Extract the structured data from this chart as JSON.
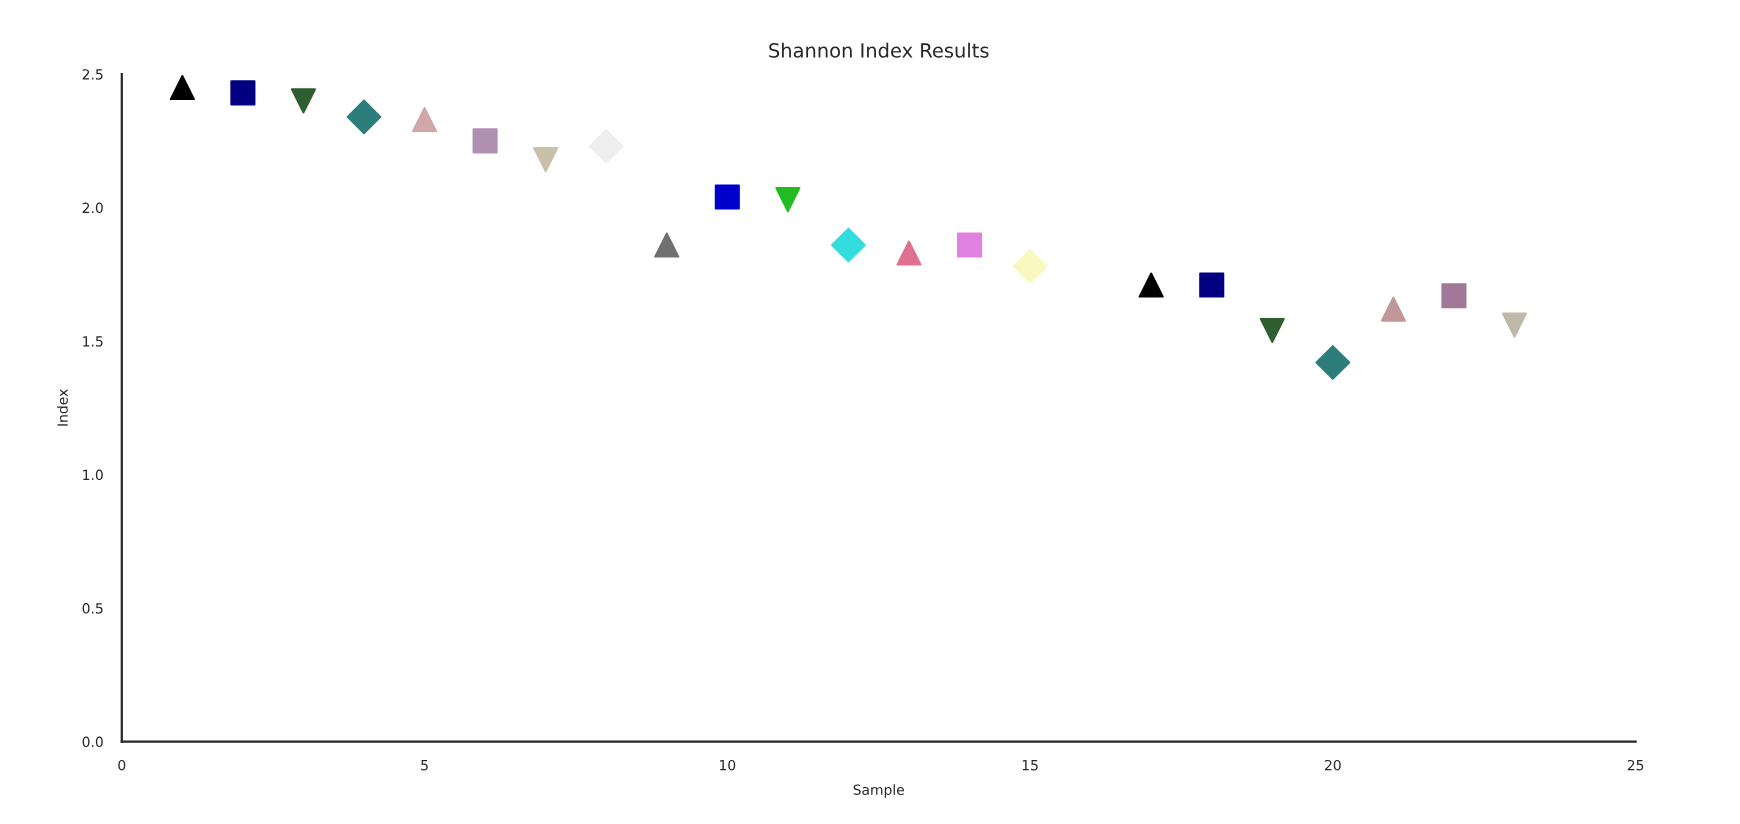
{
  "chart_data": {
    "type": "scatter",
    "title": "Shannon Index Results",
    "xlabel": "Sample",
    "ylabel": "Index",
    "xlim": [
      0,
      25
    ],
    "xticks": [
      0,
      5,
      10,
      15,
      20,
      25
    ],
    "ylim": [
      0,
      2.5
    ],
    "yticks": [
      {
        "value": 0,
        "label": "0.0"
      },
      0.5,
      {
        "value": 1,
        "label": "1.0"
      },
      1.5,
      {
        "value": 2,
        "label": "2.0"
      },
      2.5
    ],
    "grid": false,
    "legend": false,
    "series": [
      {
        "x": [
          1
        ],
        "values": [
          2.45
        ],
        "color": "#000000",
        "marker": "triangle"
      },
      {
        "x": [
          2
        ],
        "values": [
          2.43
        ],
        "color": "#000080",
        "marker": "square"
      },
      {
        "x": [
          3
        ],
        "values": [
          2.4
        ],
        "color": "#2f5f2f",
        "marker": "triangle_down"
      },
      {
        "x": [
          4
        ],
        "values": [
          2.34
        ],
        "color": "#2e7d7d",
        "marker": "diamond"
      },
      {
        "x": [
          5
        ],
        "values": [
          2.33
        ],
        "color": "#d0a8a8",
        "marker": "triangle"
      },
      {
        "x": [
          6
        ],
        "values": [
          2.25
        ],
        "color": "#b090b0",
        "marker": "square"
      },
      {
        "x": [
          7
        ],
        "values": [
          2.18
        ],
        "color": "#c8c0a8",
        "marker": "triangle_down"
      },
      {
        "x": [
          8
        ],
        "values": [
          2.23
        ],
        "color": "#eeeeee",
        "marker": "diamond"
      },
      {
        "x": [
          9
        ],
        "values": [
          1.86
        ],
        "color": "#707070",
        "marker": "triangle"
      },
      {
        "x": [
          10
        ],
        "values": [
          2.04
        ],
        "color": "#0000cc",
        "marker": "square"
      },
      {
        "x": [
          11
        ],
        "values": [
          2.03
        ],
        "color": "#22bb22",
        "marker": "triangle_down"
      },
      {
        "x": [
          12
        ],
        "values": [
          1.86
        ],
        "color": "#33dddd",
        "marker": "diamond"
      },
      {
        "x": [
          13
        ],
        "values": [
          1.83
        ],
        "color": "#e07090",
        "marker": "triangle"
      },
      {
        "x": [
          14
        ],
        "values": [
          1.86
        ],
        "color": "#e080e0",
        "marker": "square"
      },
      {
        "x": [
          15
        ],
        "values": [
          1.78
        ],
        "color": "#f8f8c0",
        "marker": "diamond"
      },
      {
        "x": [
          17
        ],
        "values": [
          1.71
        ],
        "color": "#000000",
        "marker": "triangle"
      },
      {
        "x": [
          18
        ],
        "values": [
          1.71
        ],
        "color": "#000080",
        "marker": "square"
      },
      {
        "x": [
          19
        ],
        "values": [
          1.54
        ],
        "color": "#2f5f2f",
        "marker": "triangle_down"
      },
      {
        "x": [
          20
        ],
        "values": [
          1.42
        ],
        "color": "#2e7d7d",
        "marker": "diamond"
      },
      {
        "x": [
          21
        ],
        "values": [
          1.62
        ],
        "color": "#c09898",
        "marker": "triangle"
      },
      {
        "x": [
          22
        ],
        "values": [
          1.67
        ],
        "color": "#a07898",
        "marker": "square"
      },
      {
        "x": [
          23
        ],
        "values": [
          1.56
        ],
        "color": "#c0b8a8",
        "marker": "triangle_down"
      }
    ]
  }
}
